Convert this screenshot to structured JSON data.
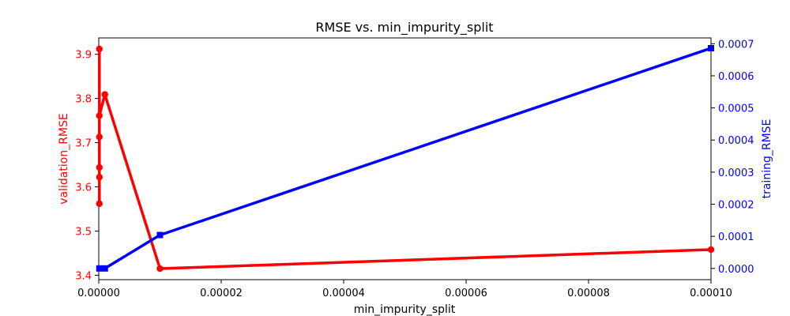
{
  "chart_data": {
    "type": "line",
    "title": "RMSE vs. min_impurity_split",
    "xlabel": "min_impurity_split",
    "ylabel_left": "validation_RMSE",
    "ylabel_right": "training_RMSE",
    "xlim": [
      0,
      0.0001
    ],
    "ylim_left": [
      3.39,
      3.937
    ],
    "ylim_right": [
      -3.5e-05,
      0.000718
    ],
    "xticks": [
      0,
      2e-05,
      4e-05,
      6e-05,
      8e-05,
      0.0001
    ],
    "xtick_labels": [
      "0.00000",
      "0.00002",
      "0.00004",
      "0.00006",
      "0.00008",
      "0.00010"
    ],
    "yticks_left": [
      3.4,
      3.5,
      3.6,
      3.7,
      3.8,
      3.9
    ],
    "ytick_labels_left": [
      "3.4",
      "3.5",
      "3.6",
      "3.7",
      "3.8",
      "3.9"
    ],
    "yticks_right": [
      0,
      0.0001,
      0.0002,
      0.0003,
      0.0004,
      0.0005,
      0.0006,
      0.0007
    ],
    "ytick_labels_right": [
      "0.0000",
      "0.0001",
      "0.0002",
      "0.0003",
      "0.0004",
      "0.0005",
      "0.0006",
      "0.0007"
    ],
    "grid": false,
    "series": [
      {
        "axis": "left",
        "color": "#ff0000",
        "marker": "circle",
        "x": [
          1e-07,
          1e-07,
          1e-07,
          1e-07,
          1e-07,
          1e-07,
          1e-06,
          1e-05,
          0.0001
        ],
        "values": [
          3.912,
          3.562,
          3.622,
          3.644,
          3.713,
          3.761,
          3.809,
          3.415,
          3.458
        ]
      },
      {
        "axis": "right",
        "color": "#0000ff",
        "marker": "square",
        "x": [
          1e-07,
          1e-06,
          1e-05,
          0.0001
        ],
        "values": [
          0.0,
          0.0,
          0.000104,
          0.000686
        ]
      }
    ]
  }
}
